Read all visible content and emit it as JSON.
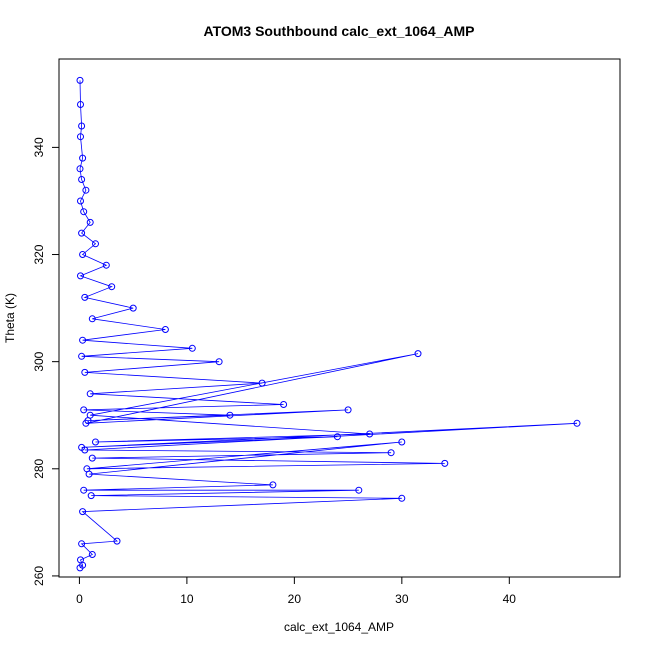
{
  "chart_data": {
    "type": "scatter",
    "title": "ATOM3 Southbound calc_ext_1064_AMP",
    "xlabel": "calc_ext_1064_AMP",
    "ylabel": "Theta (K)",
    "xlim": [
      -1.9,
      50.3
    ],
    "ylim": [
      259.8,
      356.5
    ],
    "x_ticks": [
      0,
      10,
      20,
      30,
      40
    ],
    "y_ticks": [
      260,
      280,
      300,
      320,
      340
    ],
    "grid": false,
    "legend": "none",
    "plot_style": "points connected by lines (type='o')",
    "marker": "open-circle",
    "color": "#0000ff",
    "series": [
      {
        "x": [
          0.05,
          0.1,
          0.2,
          0.1,
          0.3,
          0.05,
          0.2,
          0.6,
          0.1,
          0.4,
          1.0,
          0.2,
          1.5,
          0.3,
          2.5,
          0.1,
          3.0,
          0.5,
          5.0,
          1.2,
          8.0,
          0.3,
          10.5,
          0.2,
          13.0,
          0.5,
          17.0,
          1.0,
          19.0,
          0.4,
          14.0,
          0.8,
          25.0,
          0.6,
          31.5,
          1.0,
          27.0,
          1.5,
          24.0,
          0.2,
          46.3,
          0.5,
          29.0,
          1.2,
          34.0,
          0.7,
          30.0,
          0.9,
          18.0,
          0.4,
          26.0,
          1.1,
          30.0,
          0.3,
          3.5,
          0.2,
          1.2,
          0.1,
          0.3,
          0.05
        ],
        "y": [
          352.5,
          348.0,
          344.0,
          342.0,
          338.0,
          336.0,
          334.0,
          332.0,
          330.0,
          328.0,
          326.0,
          324.0,
          322.0,
          320.0,
          318.0,
          316.0,
          314.0,
          312.0,
          310.0,
          308.0,
          306.0,
          304.0,
          302.5,
          301.0,
          300.0,
          298.0,
          296.0,
          294.0,
          292.0,
          291.0,
          290.0,
          289.0,
          291.0,
          288.5,
          301.5,
          290.0,
          286.5,
          285.0,
          286.0,
          284.0,
          288.5,
          283.5,
          283.0,
          282.0,
          281.0,
          280.0,
          285.0,
          279.0,
          277.0,
          276.0,
          276.0,
          275.0,
          274.5,
          272.0,
          266.5,
          266.0,
          264.0,
          263.0,
          262.0,
          261.5
        ]
      }
    ]
  }
}
